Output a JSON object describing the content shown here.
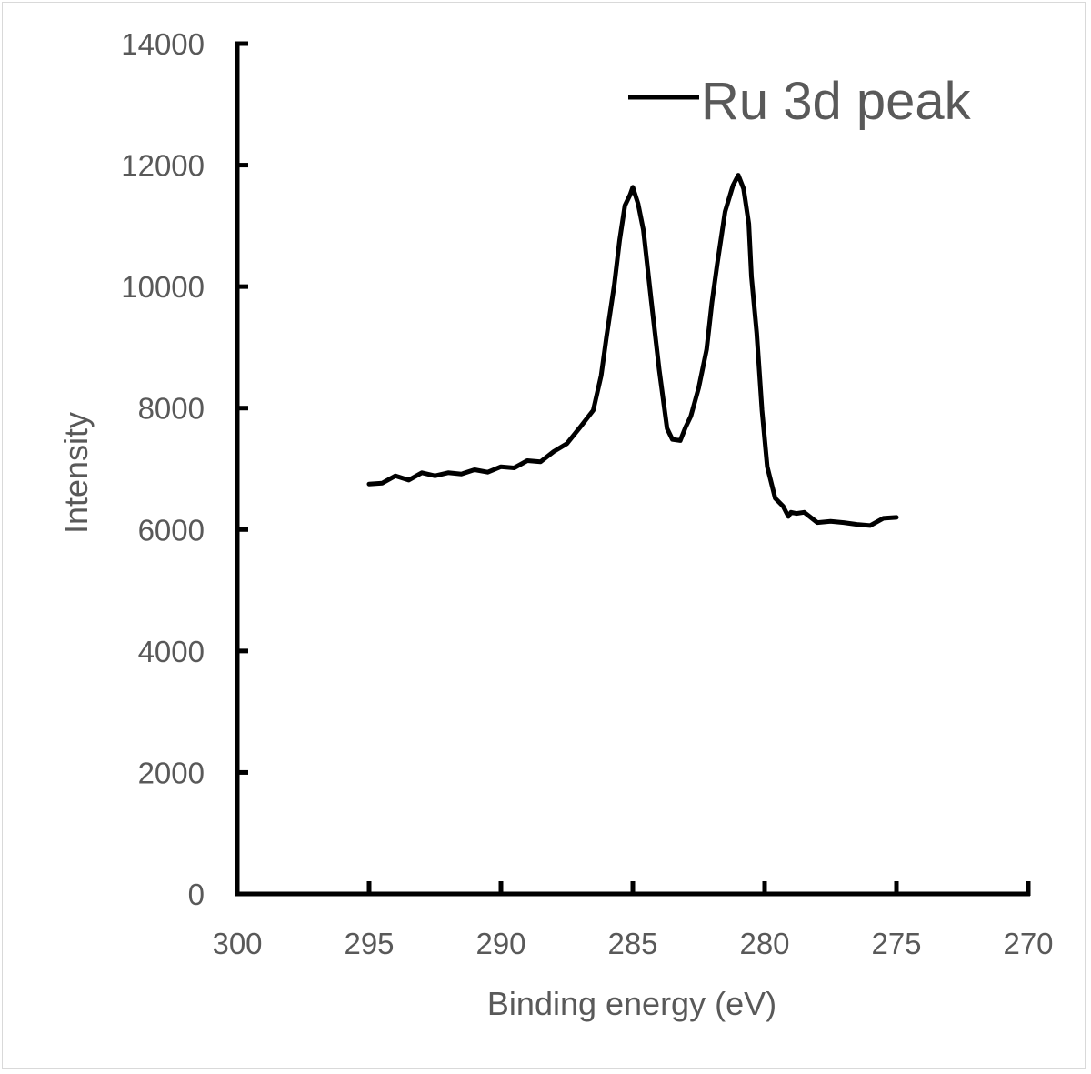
{
  "chart_data": {
    "type": "line",
    "title": "",
    "xlabel": "Binding energy (eV)",
    "ylabel": "Intensity",
    "xlim": [
      300,
      270
    ],
    "x_reversed": true,
    "ylim": [
      0,
      14000
    ],
    "x_ticks": [
      "300",
      "295",
      "290",
      "285",
      "280",
      "275",
      "270"
    ],
    "y_ticks": [
      "0",
      "2000",
      "4000",
      "6000",
      "8000",
      "10000",
      "12000",
      "14000"
    ],
    "grid": false,
    "legend_position": "top-right",
    "series": [
      {
        "name": "Ru 3d peak",
        "color": "#000000",
        "x": [
          295,
          294.5,
          294,
          293.5,
          293,
          292.5,
          292,
          291.5,
          291,
          290.5,
          290,
          289.5,
          289,
          288.5,
          288,
          287.5,
          287,
          286.5,
          286.2,
          286,
          285.7,
          285.5,
          285.3,
          285.1,
          285,
          284.8,
          284.6,
          284.3,
          284,
          283.7,
          283.5,
          283.2,
          283,
          282.8,
          282.5,
          282.2,
          282,
          281.8,
          281.5,
          281.2,
          281,
          280.8,
          280.6,
          280.5,
          280.3,
          280.1,
          279.9,
          279.6,
          279.3,
          279.1,
          279,
          278.8,
          278.5,
          278,
          277.5,
          277,
          276.5,
          276,
          275.5,
          275
        ],
        "y": [
          6750,
          6800,
          6850,
          6850,
          6900,
          6920,
          6900,
          6950,
          6950,
          6980,
          7000,
          7050,
          7100,
          7150,
          7250,
          7450,
          7650,
          8000,
          8500,
          9200,
          10000,
          10800,
          11300,
          11550,
          11600,
          11400,
          10900,
          9800,
          8600,
          7700,
          7450,
          7500,
          7650,
          7900,
          8300,
          9000,
          9700,
          10400,
          11200,
          11700,
          11800,
          11650,
          11000,
          10200,
          9200,
          8000,
          7000,
          6550,
          6350,
          6250,
          6250,
          6300,
          6250,
          6150,
          6100,
          6150,
          6050,
          6100,
          6150,
          6200
        ]
      }
    ]
  }
}
